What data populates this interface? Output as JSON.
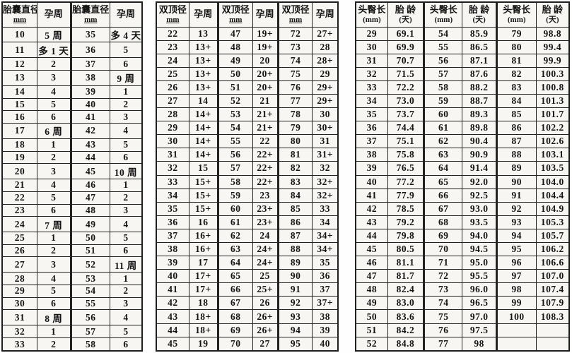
{
  "colors": {
    "border": "#1f1f1f",
    "text": "#141414",
    "cell_background": "#f7f6f3",
    "page_background": "#fefefe"
  },
  "tables": [
    {
      "name": "gestational-sac-diameter-table",
      "headers": [
        {
          "line1": "胎囊直径",
          "line2": "mm"
        },
        {
          "line1": "孕周"
        },
        {
          "line1": "胎囊直径",
          "line2": "mm"
        },
        {
          "line1": "孕周"
        }
      ],
      "rows": [
        [
          "10",
          "5 周",
          "35",
          "多 4 天"
        ],
        [
          "11",
          "多 1 天",
          "36",
          "5"
        ],
        [
          "12",
          "2",
          "37",
          "6"
        ],
        [
          "13",
          "3",
          "38",
          "9 周"
        ],
        [
          "14",
          "4",
          "39",
          "1"
        ],
        [
          "15",
          "5",
          "40",
          "2"
        ],
        [
          "16",
          "6",
          "41",
          "3"
        ],
        [
          "17",
          "6 周",
          "42",
          "4"
        ],
        [
          "18",
          "1",
          "43",
          "5"
        ],
        [
          "19",
          "2",
          "44",
          "6"
        ],
        [
          "20",
          "3",
          "45",
          "10 周"
        ],
        [
          "21",
          "4",
          "46",
          "1"
        ],
        [
          "22",
          "5",
          "47",
          "2"
        ],
        [
          "23",
          "6",
          "48",
          "3"
        ],
        [
          "24",
          "7 周",
          "49",
          "4"
        ],
        [
          "25",
          "1",
          "50",
          "5"
        ],
        [
          "26",
          "2",
          "51",
          "6"
        ],
        [
          "27",
          "3",
          "52",
          "11 周"
        ],
        [
          "28",
          "4",
          "53",
          "1"
        ],
        [
          "29",
          "5",
          "54",
          "2"
        ],
        [
          "30",
          "6",
          "55",
          "3"
        ],
        [
          "31",
          "8 周",
          "56",
          "4"
        ],
        [
          "32",
          "1",
          "57",
          "5"
        ],
        [
          "33",
          "2",
          "58",
          "6"
        ]
      ]
    },
    {
      "name": "biparietal-diameter-table",
      "headers": [
        {
          "line1": "双顶径",
          "line2": "mm"
        },
        {
          "line1": "孕周"
        },
        {
          "line1": "双顶径",
          "line2": "mm"
        },
        {
          "line1": "孕周"
        },
        {
          "line1": "双顶径",
          "line2": "mm"
        },
        {
          "line1": "孕周"
        }
      ],
      "rows": [
        [
          "22",
          "13",
          "47",
          "19+",
          "72",
          "27+"
        ],
        [
          "23",
          "13+",
          "48",
          "19+",
          "73",
          "28"
        ],
        [
          "24",
          "13+",
          "49",
          "20",
          "74",
          "28+"
        ],
        [
          "25",
          "13+",
          "50",
          "20+",
          "75",
          "29"
        ],
        [
          "26",
          "13+",
          "51",
          "20+",
          "76",
          "29+"
        ],
        [
          "27",
          "14",
          "52",
          "21",
          "77",
          "29+"
        ],
        [
          "28",
          "14+",
          "53",
          "21+",
          "78",
          "30"
        ],
        [
          "29",
          "14+",
          "54",
          "21+",
          "79",
          "30+"
        ],
        [
          "30",
          "14+",
          "55",
          "22",
          "80",
          "31"
        ],
        [
          "31",
          "14+",
          "56",
          "22+",
          "81",
          "31+"
        ],
        [
          "32",
          "15",
          "57",
          "22+",
          "82",
          "32"
        ],
        [
          "33",
          "15+",
          "58",
          "22+",
          "83",
          "32+"
        ],
        [
          "34",
          "15+",
          "59",
          "23",
          "84",
          "32+"
        ],
        [
          "35",
          "15+",
          "60",
          "23+",
          "85",
          "33"
        ],
        [
          "36",
          "16",
          "61",
          "23+",
          "86",
          "34"
        ],
        [
          "37",
          "16+",
          "62",
          "24",
          "87",
          "34+"
        ],
        [
          "38",
          "16+",
          "63",
          "24+",
          "88",
          "34+"
        ],
        [
          "39",
          "17",
          "64",
          "24+",
          "89",
          "35"
        ],
        [
          "40",
          "17+",
          "65",
          "25",
          "90",
          "36"
        ],
        [
          "41",
          "17+",
          "66",
          "25+",
          "91",
          "37"
        ],
        [
          "42",
          "18",
          "67",
          "26",
          "92",
          "37+"
        ],
        [
          "43",
          "18+",
          "68",
          "26+",
          "93",
          "38"
        ],
        [
          "44",
          "18+",
          "69",
          "26+",
          "94",
          "39"
        ],
        [
          "45",
          "19",
          "70",
          "27",
          "95",
          "40"
        ]
      ]
    },
    {
      "name": "crown-rump-length-table",
      "headers": [
        {
          "line1": "头臀长",
          "line2": "(mm)"
        },
        {
          "line1": "胎 龄",
          "line2": "(天)"
        },
        {
          "line1": "头臀长",
          "line2": "(mm)"
        },
        {
          "line1": "胎 龄",
          "line2": "(天)"
        },
        {
          "line1": "头臀长",
          "line2": "(mm)"
        },
        {
          "line1": "胎 龄",
          "line2": "(天)"
        }
      ],
      "rows": [
        [
          "29",
          "69.1",
          "54",
          "85.9",
          "79",
          "98.8"
        ],
        [
          "30",
          "69.9",
          "55",
          "86.5",
          "80",
          "99.4"
        ],
        [
          "31",
          "70.7",
          "56",
          "87.1",
          "81",
          "99.9"
        ],
        [
          "32",
          "71.5",
          "57",
          "87.6",
          "82",
          "100.3"
        ],
        [
          "33",
          "72.2",
          "58",
          "88.2",
          "83",
          "100.8"
        ],
        [
          "34",
          "73.0",
          "59",
          "88.7",
          "84",
          "101.3"
        ],
        [
          "35",
          "73.7",
          "60",
          "89.3",
          "85",
          "101.7"
        ],
        [
          "36",
          "74.4",
          "61",
          "89.8",
          "86",
          "102.2"
        ],
        [
          "37",
          "75.1",
          "62",
          "90.4",
          "87",
          "102.6"
        ],
        [
          "38",
          "75.8",
          "63",
          "90.9",
          "88",
          "103.1"
        ],
        [
          "39",
          "76.5",
          "64",
          "91.4",
          "89",
          "103.5"
        ],
        [
          "40",
          "77.2",
          "65",
          "92.0",
          "90",
          "104.0"
        ],
        [
          "41",
          "77.9",
          "66",
          "92.5",
          "91",
          "104.4"
        ],
        [
          "42",
          "78.5",
          "67",
          "93.0",
          "92",
          "104.9"
        ],
        [
          "43",
          "79.2",
          "68",
          "93.5",
          "93",
          "105.3"
        ],
        [
          "44",
          "79.8",
          "69",
          "94.0",
          "94",
          "105.7"
        ],
        [
          "45",
          "80.5",
          "70",
          "94.5",
          "95",
          "106.2"
        ],
        [
          "46",
          "81.1",
          "71",
          "95.0",
          "96",
          "106.6"
        ],
        [
          "47",
          "81.7",
          "72",
          "95.5",
          "97",
          "107.0"
        ],
        [
          "48",
          "82.4",
          "73",
          "96.0",
          "98",
          "107.4"
        ],
        [
          "49",
          "83.0",
          "74",
          "96.5",
          "99",
          "107.9"
        ],
        [
          "50",
          "83.6",
          "75",
          "97.0",
          "100",
          "108.3"
        ],
        [
          "51",
          "84.2",
          "76",
          "97.5",
          "",
          ""
        ],
        [
          "52",
          "84.8",
          "77",
          "98",
          "",
          ""
        ]
      ]
    }
  ]
}
